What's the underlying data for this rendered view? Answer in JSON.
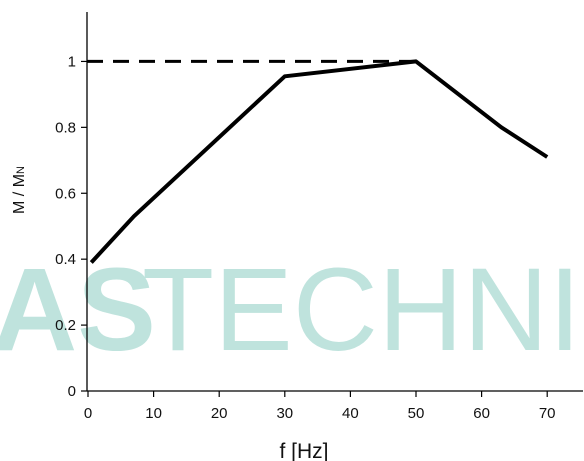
{
  "chart_data": {
    "type": "line",
    "xlabel": "f [Hz]",
    "ylabel": "M / M",
    "ylabel_sub": "N",
    "xlim": [
      0,
      75
    ],
    "ylim": [
      0,
      1.15
    ],
    "x_ticks": [
      0,
      10,
      20,
      30,
      40,
      50,
      60,
      70
    ],
    "y_ticks": [
      0,
      0.2,
      0.4,
      0.6,
      0.8,
      1
    ],
    "x_tick_labels": [
      "0",
      "10",
      "20",
      "30",
      "40",
      "50",
      "60",
      "70"
    ],
    "y_tick_labels": [
      "0",
      "0.2",
      "0.4",
      "0.6",
      "0.8",
      "1"
    ],
    "grid": false,
    "series": [
      {
        "style": "solid",
        "color": "#000000",
        "x": [
          0.5,
          7,
          30,
          50,
          63,
          70
        ],
        "y": [
          0.39,
          0.53,
          0.955,
          1.0,
          0.8,
          0.71
        ]
      }
    ],
    "reference_line": {
      "style": "dashed",
      "color": "#000000",
      "y": 1.0,
      "x": [
        0,
        50
      ]
    }
  },
  "watermark": {
    "bold_text": "AS",
    "light_text": "TECHNIK",
    "color": "#bfe3dd"
  }
}
